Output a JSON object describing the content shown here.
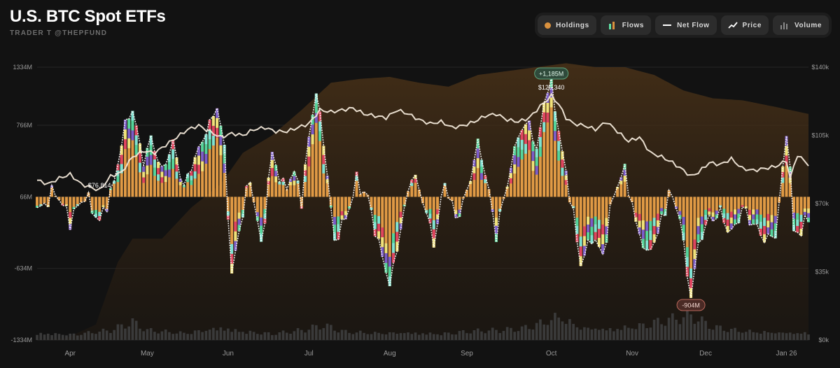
{
  "header": {
    "title": "U.S. BTC Spot ETFs",
    "subtitle": "TRADER T @THEPFUND"
  },
  "controls": [
    {
      "label": "Holdings",
      "icon": "holdings-dot-icon",
      "color": "#d9913e"
    },
    {
      "label": "Flows",
      "icon": "flows-bars-icon",
      "color": "#5ee0a3"
    },
    {
      "label": "Net Flow",
      "icon": "net-flow-line-icon",
      "color": "#ffffff"
    },
    {
      "label": "Price",
      "icon": "price-trend-icon",
      "color": "#ffffff"
    },
    {
      "label": "Volume",
      "icon": "volume-bars-icon",
      "color": "#9a9a9a"
    }
  ],
  "colors": {
    "holdings": "#e09a45",
    "flow_green": "#53d59c",
    "flow_red": "#e0445f",
    "flow_purple": "#7b5cc9",
    "flow_yellow": "#f0e27a",
    "flow_cyan": "#7fe3d3",
    "price": "#f2e8d9",
    "volume": "#3a3a3a",
    "area": "#3b2a16"
  },
  "chart_data": {
    "type": "bar",
    "left_axis": {
      "ticks": [
        "1334M",
        "766M",
        "66M",
        "-634M",
        "-1334M"
      ],
      "values": [
        1334,
        766,
        66,
        -634,
        -1334
      ],
      "min": -1334,
      "max": 1334
    },
    "right_axis": {
      "ticks": [
        "$140k",
        "$105k",
        "$70k",
        "$35k",
        "$0k"
      ],
      "values": [
        140000,
        105000,
        70000,
        35000,
        0
      ],
      "min": 0,
      "max": 140000
    },
    "months": [
      "Apr",
      "May",
      "Jun",
      "Jul",
      "Aug",
      "Sep",
      "Oct",
      "Nov",
      "Dec",
      "Jan 26"
    ],
    "month_day_index": [
      9,
      30,
      52,
      74,
      96,
      117,
      140,
      162,
      182,
      204
    ],
    "annotations": [
      {
        "label": "+1,185M",
        "kind": "max-flow",
        "day": 140,
        "value": 1185
      },
      {
        "label": "$125,340",
        "kind": "max-price",
        "day": 140,
        "value": 125340
      },
      {
        "label": "$76,814",
        "kind": "min-price",
        "day": 17,
        "value": 76814
      },
      {
        "label": "-904M",
        "kind": "min-flow",
        "day": 178,
        "value": -904
      }
    ],
    "flow_keys": [
      [
        0,
        -80
      ],
      [
        5,
        120
      ],
      [
        9,
        -160
      ],
      [
        13,
        80
      ],
      [
        17,
        -180
      ],
      [
        21,
        200
      ],
      [
        24,
        780
      ],
      [
        26,
        920
      ],
      [
        29,
        400
      ],
      [
        31,
        650
      ],
      [
        34,
        300
      ],
      [
        37,
        600
      ],
      [
        40,
        150
      ],
      [
        43,
        450
      ],
      [
        46,
        700
      ],
      [
        49,
        950
      ],
      [
        51,
        550
      ],
      [
        53,
        -700
      ],
      [
        55,
        -250
      ],
      [
        58,
        250
      ],
      [
        61,
        -400
      ],
      [
        64,
        500
      ],
      [
        67,
        150
      ],
      [
        70,
        300
      ],
      [
        72,
        50
      ],
      [
        74,
        650
      ],
      [
        76,
        1100
      ],
      [
        78,
        600
      ],
      [
        81,
        -380
      ],
      [
        84,
        -150
      ],
      [
        87,
        220
      ],
      [
        90,
        60
      ],
      [
        93,
        -380
      ],
      [
        96,
        -800
      ],
      [
        99,
        -250
      ],
      [
        102,
        300
      ],
      [
        105,
        50
      ],
      [
        108,
        -400
      ],
      [
        111,
        220
      ],
      [
        114,
        -150
      ],
      [
        117,
        100
      ],
      [
        120,
        600
      ],
      [
        122,
        300
      ],
      [
        125,
        -300
      ],
      [
        128,
        200
      ],
      [
        131,
        680
      ],
      [
        134,
        800
      ],
      [
        136,
        500
      ],
      [
        138,
        1000
      ],
      [
        140,
        1185
      ],
      [
        142,
        700
      ],
      [
        145,
        100
      ],
      [
        148,
        -600
      ],
      [
        151,
        -300
      ],
      [
        154,
        -500
      ],
      [
        157,
        100
      ],
      [
        160,
        350
      ],
      [
        163,
        -200
      ],
      [
        166,
        -500
      ],
      [
        169,
        -300
      ],
      [
        172,
        100
      ],
      [
        175,
        -100
      ],
      [
        177,
        -700
      ],
      [
        178,
        -904
      ],
      [
        180,
        -400
      ],
      [
        183,
        -150
      ],
      [
        186,
        -100
      ],
      [
        189,
        -300
      ],
      [
        192,
        -50
      ],
      [
        195,
        -200
      ],
      [
        198,
        -350
      ],
      [
        201,
        -300
      ],
      [
        203,
        300
      ],
      [
        204,
        700
      ],
      [
        205,
        350
      ],
      [
        206,
        -300
      ],
      [
        208,
        -250
      ],
      [
        210,
        -150
      ]
    ],
    "price_keys": [
      [
        0,
        82000
      ],
      [
        3,
        80000
      ],
      [
        6,
        83000
      ],
      [
        9,
        85000
      ],
      [
        12,
        80000
      ],
      [
        15,
        78000
      ],
      [
        17,
        76814
      ],
      [
        20,
        84000
      ],
      [
        23,
        86000
      ],
      [
        26,
        94000
      ],
      [
        29,
        97000
      ],
      [
        32,
        96000
      ],
      [
        35,
        100000
      ],
      [
        38,
        104000
      ],
      [
        41,
        108000
      ],
      [
        44,
        110000
      ],
      [
        47,
        107000
      ],
      [
        50,
        104000
      ],
      [
        53,
        106000
      ],
      [
        56,
        105000
      ],
      [
        59,
        108000
      ],
      [
        62,
        109000
      ],
      [
        65,
        107000
      ],
      [
        68,
        107000
      ],
      [
        71,
        109000
      ],
      [
        74,
        111000
      ],
      [
        77,
        118000
      ],
      [
        80,
        117000
      ],
      [
        83,
        118000
      ],
      [
        86,
        119000
      ],
      [
        89,
        116000
      ],
      [
        92,
        115000
      ],
      [
        95,
        114000
      ],
      [
        98,
        118000
      ],
      [
        101,
        116000
      ],
      [
        104,
        113000
      ],
      [
        107,
        111000
      ],
      [
        110,
        112000
      ],
      [
        113,
        109000
      ],
      [
        116,
        110000
      ],
      [
        119,
        112000
      ],
      [
        122,
        115000
      ],
      [
        125,
        116000
      ],
      [
        128,
        113000
      ],
      [
        131,
        112000
      ],
      [
        134,
        114000
      ],
      [
        137,
        120000
      ],
      [
        140,
        125340
      ],
      [
        142,
        121000
      ],
      [
        144,
        114000
      ],
      [
        146,
        111000
      ],
      [
        149,
        110000
      ],
      [
        152,
        108000
      ],
      [
        155,
        112000
      ],
      [
        158,
        107000
      ],
      [
        161,
        102000
      ],
      [
        164,
        104000
      ],
      [
        167,
        96000
      ],
      [
        170,
        94000
      ],
      [
        173,
        91000
      ],
      [
        176,
        87000
      ],
      [
        178,
        84000
      ],
      [
        180,
        86000
      ],
      [
        183,
        91000
      ],
      [
        186,
        90000
      ],
      [
        189,
        93000
      ],
      [
        192,
        88000
      ],
      [
        195,
        87000
      ],
      [
        198,
        88000
      ],
      [
        201,
        89000
      ],
      [
        204,
        92000
      ],
      [
        205,
        83000
      ],
      [
        207,
        95000
      ],
      [
        210,
        90000
      ]
    ],
    "holdings_keys": [
      [
        0,
        0
      ],
      [
        8,
        1000
      ],
      [
        16,
        8000
      ],
      [
        22,
        40000
      ],
      [
        26,
        52000
      ],
      [
        34,
        52000
      ],
      [
        42,
        68000
      ],
      [
        50,
        80000
      ],
      [
        56,
        96000
      ],
      [
        64,
        105000
      ],
      [
        72,
        118000
      ],
      [
        80,
        132000
      ],
      [
        88,
        134000
      ],
      [
        96,
        135000
      ],
      [
        104,
        132000
      ],
      [
        112,
        130000
      ],
      [
        120,
        136000
      ],
      [
        128,
        138000
      ],
      [
        136,
        140000
      ],
      [
        144,
        142000
      ],
      [
        152,
        140000
      ],
      [
        160,
        140000
      ],
      [
        168,
        136000
      ],
      [
        176,
        128000
      ],
      [
        184,
        124000
      ],
      [
        192,
        123000
      ],
      [
        200,
        120000
      ],
      [
        210,
        116000
      ]
    ],
    "volume_keys": [
      [
        0,
        0.22
      ],
      [
        10,
        0.18
      ],
      [
        20,
        0.3
      ],
      [
        26,
        0.55
      ],
      [
        30,
        0.3
      ],
      [
        40,
        0.22
      ],
      [
        50,
        0.4
      ],
      [
        56,
        0.28
      ],
      [
        64,
        0.2
      ],
      [
        72,
        0.3
      ],
      [
        78,
        0.45
      ],
      [
        84,
        0.25
      ],
      [
        92,
        0.22
      ],
      [
        100,
        0.24
      ],
      [
        110,
        0.2
      ],
      [
        118,
        0.28
      ],
      [
        126,
        0.3
      ],
      [
        132,
        0.35
      ],
      [
        138,
        0.55
      ],
      [
        142,
        0.75
      ],
      [
        148,
        0.4
      ],
      [
        156,
        0.35
      ],
      [
        164,
        0.45
      ],
      [
        170,
        0.6
      ],
      [
        176,
        0.7
      ],
      [
        178,
        0.75
      ],
      [
        184,
        0.4
      ],
      [
        192,
        0.28
      ],
      [
        200,
        0.25
      ],
      [
        210,
        0.22
      ]
    ]
  }
}
